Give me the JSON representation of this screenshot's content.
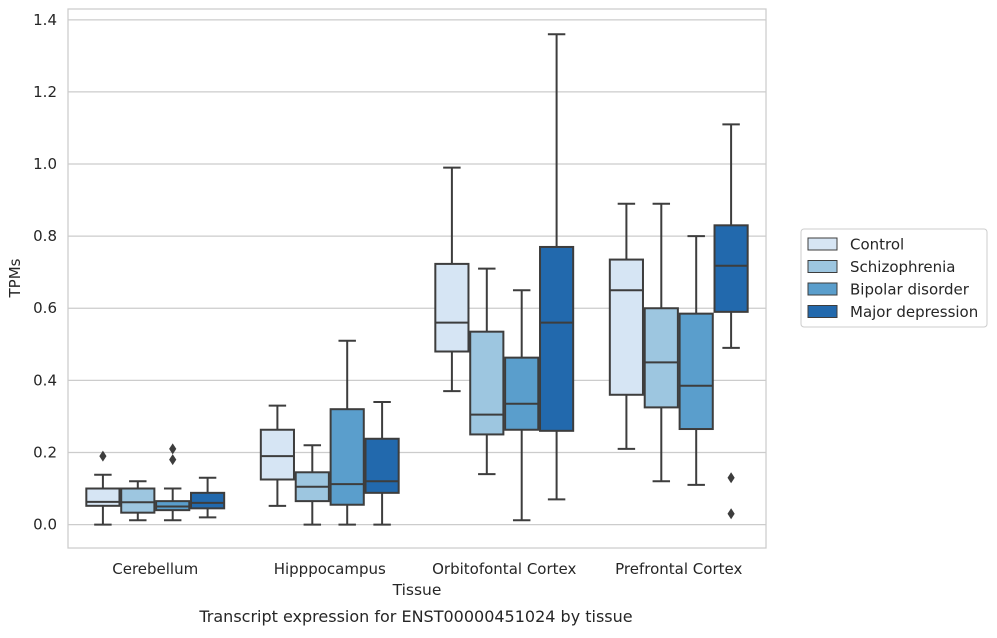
{
  "chart_data": {
    "type": "boxplot",
    "title": "",
    "caption": "Transcript expression for ENST00000451024 by tissue",
    "xlabel": "Tissue",
    "ylabel": "TPMs",
    "ylim": [
      -0.065,
      1.43
    ],
    "yticks": [
      "0.0",
      "0.2",
      "0.4",
      "0.6",
      "0.8",
      "1.0",
      "1.2",
      "1.4"
    ],
    "grid": true,
    "legend_position": "right",
    "categories": [
      "Cerebellum",
      "Hipppocampus",
      "Orbitofontal Cortex",
      "Prefrontal Cortex"
    ],
    "series": [
      {
        "name": "Control",
        "color": "#d6e5f4",
        "boxes": [
          {
            "whislo": 0.0,
            "q1": 0.052,
            "med": 0.063,
            "q3": 0.1,
            "whishi": 0.138,
            "fliers": [
              0.19
            ]
          },
          {
            "whislo": 0.052,
            "q1": 0.125,
            "med": 0.19,
            "q3": 0.263,
            "whishi": 0.33,
            "fliers": []
          },
          {
            "whislo": 0.37,
            "q1": 0.48,
            "med": 0.56,
            "q3": 0.723,
            "whishi": 0.99,
            "fliers": []
          },
          {
            "whislo": 0.21,
            "q1": 0.36,
            "med": 0.65,
            "q3": 0.735,
            "whishi": 0.89,
            "fliers": []
          }
        ]
      },
      {
        "name": "Schizophrenia",
        "color": "#9dc6e0",
        "boxes": [
          {
            "whislo": 0.012,
            "q1": 0.033,
            "med": 0.062,
            "q3": 0.1,
            "whishi": 0.12,
            "fliers": []
          },
          {
            "whislo": 0.0,
            "q1": 0.065,
            "med": 0.105,
            "q3": 0.145,
            "whishi": 0.22,
            "fliers": []
          },
          {
            "whislo": 0.14,
            "q1": 0.25,
            "med": 0.305,
            "q3": 0.535,
            "whishi": 0.71,
            "fliers": []
          },
          {
            "whislo": 0.12,
            "q1": 0.325,
            "med": 0.45,
            "q3": 0.6,
            "whishi": 0.89,
            "fliers": []
          }
        ]
      },
      {
        "name": "Bipolar disorder",
        "color": "#5a9ecc",
        "boxes": [
          {
            "whislo": 0.012,
            "q1": 0.04,
            "med": 0.05,
            "q3": 0.065,
            "whishi": 0.1,
            "fliers": [
              0.18,
              0.21
            ]
          },
          {
            "whislo": 0.0,
            "q1": 0.055,
            "med": 0.112,
            "q3": 0.32,
            "whishi": 0.51,
            "fliers": []
          },
          {
            "whislo": 0.012,
            "q1": 0.263,
            "med": 0.335,
            "q3": 0.463,
            "whishi": 0.65,
            "fliers": []
          },
          {
            "whislo": 0.11,
            "q1": 0.265,
            "med": 0.385,
            "q3": 0.585,
            "whishi": 0.8,
            "fliers": []
          }
        ]
      },
      {
        "name": "Major depression",
        "color": "#2269ad",
        "boxes": [
          {
            "whislo": 0.02,
            "q1": 0.045,
            "med": 0.06,
            "q3": 0.088,
            "whishi": 0.13,
            "fliers": []
          },
          {
            "whislo": 0.0,
            "q1": 0.088,
            "med": 0.12,
            "q3": 0.238,
            "whishi": 0.34,
            "fliers": []
          },
          {
            "whislo": 0.07,
            "q1": 0.26,
            "med": 0.56,
            "q3": 0.77,
            "whishi": 1.36,
            "fliers": []
          },
          {
            "whislo": 0.49,
            "q1": 0.59,
            "med": 0.718,
            "q3": 0.83,
            "whishi": 1.11,
            "fliers": [
              0.13,
              0.03
            ]
          }
        ]
      }
    ]
  }
}
